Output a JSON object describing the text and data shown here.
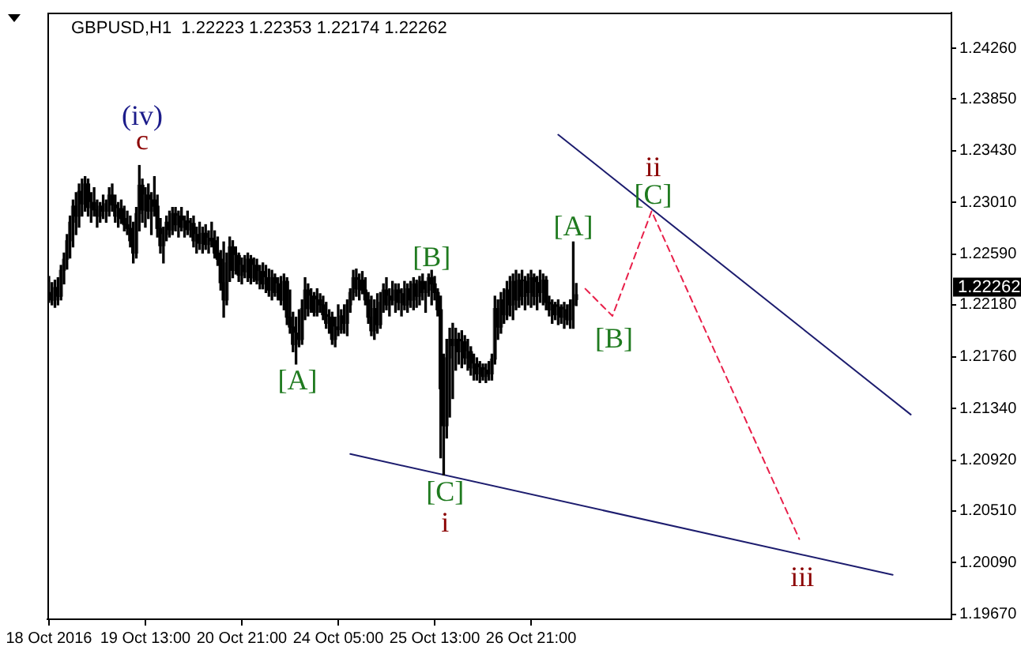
{
  "chart_data": {
    "type": "candlestick",
    "title": "GBPUSD,H1  1.22223 1.22353 1.22174 1.22262",
    "categories": [
      "18 Oct 2016",
      null,
      null,
      null,
      null,
      null,
      null,
      null,
      null,
      null,
      null,
      null,
      null,
      null,
      null,
      null,
      null,
      null,
      null,
      null,
      null,
      null,
      null,
      null,
      null,
      null,
      null,
      null,
      null,
      null,
      null,
      null,
      "19 Oct 13:00",
      null,
      null,
      null,
      null,
      null,
      null,
      null,
      null,
      null,
      null,
      null,
      null,
      null,
      null,
      null,
      null,
      null,
      null,
      null,
      null,
      null,
      null,
      null,
      null,
      null,
      null,
      null,
      null,
      null,
      null,
      null,
      "20 Oct 21:00",
      null,
      null,
      null,
      null,
      null,
      null,
      null,
      null,
      null,
      null,
      null,
      null,
      null,
      null,
      null,
      null,
      null,
      null,
      null,
      null,
      null,
      null,
      null,
      null,
      null,
      null,
      null,
      null,
      null,
      null,
      null,
      "24 Oct 05:00",
      null,
      null,
      null,
      null,
      null,
      null,
      null,
      null,
      null,
      null,
      null,
      null,
      null,
      null,
      null,
      null,
      null,
      null,
      null,
      null,
      null,
      null,
      null,
      null,
      null,
      null,
      null,
      null,
      null,
      null,
      null,
      "25 Oct 13:00",
      null,
      null,
      null,
      null,
      null,
      null,
      null,
      null,
      null,
      null,
      null,
      null,
      null,
      null,
      null,
      null,
      null,
      null,
      null,
      null,
      null,
      null,
      null,
      null,
      null,
      null,
      null,
      null,
      null,
      null,
      null,
      "26 Oct 21:00",
      null,
      null,
      null,
      null,
      null,
      null,
      null,
      null,
      null,
      null,
      null,
      null,
      null,
      null,
      null,
      null,
      null,
      null,
      null,
      null,
      null,
      null,
      null,
      null,
      null,
      null,
      null,
      null,
      null,
      null,
      null,
      null,
      null,
      null,
      null,
      null,
      null,
      null,
      null,
      null,
      null,
      null,
      null,
      null,
      null,
      null,
      null,
      null,
      null,
      null,
      null,
      null,
      null,
      null,
      null,
      null,
      null,
      null,
      null,
      null,
      null,
      null,
      null,
      null,
      null,
      null,
      null,
      null,
      null,
      null,
      null,
      null,
      null,
      null,
      null,
      null,
      null,
      null,
      null,
      null,
      null,
      null,
      null,
      null,
      null,
      null,
      null,
      null,
      null,
      null,
      null,
      null,
      null,
      null,
      null,
      null,
      null,
      null,
      null,
      null,
      null,
      null,
      null,
      null,
      null,
      null,
      null,
      null,
      null,
      null,
      null,
      null,
      null,
      null,
      null,
      null,
      null,
      null,
      null,
      null,
      null,
      null,
      null,
      null,
      null,
      null,
      null,
      null,
      null,
      null,
      null,
      null,
      null,
      null,
      null,
      null,
      null,
      null,
      null
    ],
    "ohlc": [
      [
        1.2228,
        1.2241,
        1.222,
        1.2226
      ],
      [
        1.2226,
        1.2236,
        1.2218,
        1.2222
      ],
      [
        1.2222,
        1.2238,
        1.2216,
        1.2232
      ],
      [
        1.2232,
        1.224,
        1.2218,
        1.2225
      ],
      [
        1.2225,
        1.225,
        1.2222,
        1.2246
      ],
      [
        1.2246,
        1.226,
        1.2235,
        1.2255
      ],
      [
        1.2255,
        1.2275,
        1.2247,
        1.227
      ],
      [
        1.227,
        1.229,
        1.2256,
        1.2285
      ],
      [
        1.2285,
        1.2303,
        1.2265,
        1.2298
      ],
      [
        1.2298,
        1.2309,
        1.2275,
        1.229
      ],
      [
        1.229,
        1.2316,
        1.2281,
        1.231
      ],
      [
        1.231,
        1.232,
        1.229,
        1.23
      ],
      [
        1.23,
        1.2322,
        1.2294,
        1.2316
      ],
      [
        1.2316,
        1.232,
        1.229,
        1.2297
      ],
      [
        1.2297,
        1.2309,
        1.2285,
        1.2301
      ],
      [
        1.2301,
        1.2313,
        1.229,
        1.2295
      ],
      [
        1.2295,
        1.2303,
        1.2281,
        1.229
      ],
      [
        1.229,
        1.2301,
        1.2285,
        1.2298
      ],
      [
        1.2298,
        1.2307,
        1.2288,
        1.2294
      ],
      [
        1.2294,
        1.2303,
        1.2285,
        1.23
      ],
      [
        1.23,
        1.2313,
        1.229,
        1.2307
      ],
      [
        1.2307,
        1.2316,
        1.2294,
        1.2299
      ],
      [
        1.2299,
        1.2307,
        1.2285,
        1.229
      ],
      [
        1.229,
        1.2301,
        1.2281,
        1.2296
      ],
      [
        1.2296,
        1.2303,
        1.2284,
        1.2288
      ],
      [
        1.2288,
        1.2298,
        1.2278,
        1.2283
      ],
      [
        1.2283,
        1.2294,
        1.2275,
        1.228
      ],
      [
        1.228,
        1.229,
        1.2265,
        1.227
      ],
      [
        1.227,
        1.2285,
        1.2252,
        1.226
      ],
      [
        1.226,
        1.2297,
        1.2256,
        1.2292
      ],
      [
        1.2292,
        1.2331,
        1.2278,
        1.2315
      ],
      [
        1.2315,
        1.232,
        1.2285,
        1.2295
      ],
      [
        1.2295,
        1.2313,
        1.2281,
        1.2307
      ],
      [
        1.2307,
        1.2316,
        1.2288,
        1.2294
      ],
      [
        1.2294,
        1.2309,
        1.2275,
        1.2303
      ],
      [
        1.2303,
        1.2322,
        1.229,
        1.2298
      ],
      [
        1.2298,
        1.2307,
        1.2273,
        1.228
      ],
      [
        1.228,
        1.2288,
        1.226,
        1.2266
      ],
      [
        1.2266,
        1.2281,
        1.2252,
        1.2275
      ],
      [
        1.2275,
        1.229,
        1.227,
        1.2285
      ],
      [
        1.2285,
        1.2294,
        1.2273,
        1.2279
      ],
      [
        1.2279,
        1.2297,
        1.2275,
        1.2292
      ],
      [
        1.2292,
        1.2297,
        1.2278,
        1.2283
      ],
      [
        1.2283,
        1.2294,
        1.2273,
        1.229
      ],
      [
        1.229,
        1.2297,
        1.2278,
        1.2281
      ],
      [
        1.2281,
        1.229,
        1.2273,
        1.2286
      ],
      [
        1.2286,
        1.2294,
        1.2275,
        1.2279
      ],
      [
        1.2279,
        1.2288,
        1.2273,
        1.2284
      ],
      [
        1.2284,
        1.229,
        1.2265,
        1.227
      ],
      [
        1.227,
        1.2281,
        1.226,
        1.2275
      ],
      [
        1.2275,
        1.2285,
        1.2263,
        1.2268
      ],
      [
        1.2268,
        1.2281,
        1.226,
        1.2276
      ],
      [
        1.2276,
        1.2283,
        1.2263,
        1.2267
      ],
      [
        1.2267,
        1.2278,
        1.226,
        1.2272
      ],
      [
        1.2272,
        1.2285,
        1.2265,
        1.227
      ],
      [
        1.227,
        1.2278,
        1.2256,
        1.226
      ],
      [
        1.226,
        1.2273,
        1.225,
        1.2255
      ],
      [
        1.2255,
        1.2262,
        1.223,
        1.2236
      ],
      [
        1.2236,
        1.2269,
        1.2208,
        1.2222
      ],
      [
        1.2222,
        1.226,
        1.2218,
        1.2252
      ],
      [
        1.2252,
        1.2273,
        1.2237,
        1.2265
      ],
      [
        1.2265,
        1.227,
        1.224,
        1.2246
      ],
      [
        1.2246,
        1.2265,
        1.2243,
        1.2258
      ],
      [
        1.2258,
        1.226,
        1.2237,
        1.2242
      ],
      [
        1.2242,
        1.2256,
        1.2235,
        1.225
      ],
      [
        1.225,
        1.2258,
        1.224,
        1.2245
      ],
      [
        1.2245,
        1.226,
        1.2237,
        1.2255
      ],
      [
        1.2255,
        1.2258,
        1.2235,
        1.224
      ],
      [
        1.224,
        1.2256,
        1.2237,
        1.225
      ],
      [
        1.225,
        1.2255,
        1.2235,
        1.2238
      ],
      [
        1.2238,
        1.225,
        1.2231,
        1.2245
      ],
      [
        1.2245,
        1.2252,
        1.2231,
        1.2235
      ],
      [
        1.2235,
        1.225,
        1.2228,
        1.224
      ],
      [
        1.224,
        1.2247,
        1.2225,
        1.223
      ],
      [
        1.223,
        1.2246,
        1.2222,
        1.224
      ],
      [
        1.224,
        1.2243,
        1.2225,
        1.2228
      ],
      [
        1.2228,
        1.224,
        1.2222,
        1.2235
      ],
      [
        1.2235,
        1.2241,
        1.2218,
        1.2222
      ],
      [
        1.2222,
        1.2243,
        1.2214,
        1.2237
      ],
      [
        1.2237,
        1.224,
        1.2202,
        1.2208
      ],
      [
        1.2208,
        1.223,
        1.2195,
        1.22
      ],
      [
        1.22,
        1.2212,
        1.218,
        1.2186
      ],
      [
        1.2186,
        1.2208,
        1.217,
        1.2195
      ],
      [
        1.2195,
        1.2214,
        1.2184,
        1.219
      ],
      [
        1.219,
        1.2222,
        1.2186,
        1.2215
      ],
      [
        1.2215,
        1.224,
        1.2206,
        1.223
      ],
      [
        1.223,
        1.2235,
        1.2209,
        1.2215
      ],
      [
        1.2215,
        1.2231,
        1.2212,
        1.2225
      ],
      [
        1.2225,
        1.2228,
        1.2209,
        1.2212
      ],
      [
        1.2212,
        1.2231,
        1.2209,
        1.2222
      ],
      [
        1.2222,
        1.2227,
        1.2212,
        1.2218
      ],
      [
        1.2218,
        1.2225,
        1.2206,
        1.221
      ],
      [
        1.221,
        1.222,
        1.2199,
        1.2203
      ],
      [
        1.2203,
        1.2214,
        1.2195,
        1.2208
      ],
      [
        1.2208,
        1.2212,
        1.2186,
        1.219
      ],
      [
        1.219,
        1.2208,
        1.2184,
        1.22
      ],
      [
        1.22,
        1.2218,
        1.2193,
        1.2198
      ],
      [
        1.2198,
        1.2214,
        1.2195,
        1.2209
      ],
      [
        1.2209,
        1.2218,
        1.2195,
        1.2203
      ],
      [
        1.2203,
        1.2222,
        1.2193,
        1.2218
      ],
      [
        1.2218,
        1.2231,
        1.2212,
        1.2228
      ],
      [
        1.2228,
        1.2246,
        1.2222,
        1.224
      ],
      [
        1.224,
        1.2247,
        1.2225,
        1.2231
      ],
      [
        1.2231,
        1.2243,
        1.2222,
        1.2238
      ],
      [
        1.2238,
        1.2245,
        1.2227,
        1.223
      ],
      [
        1.223,
        1.224,
        1.2218,
        1.2222
      ],
      [
        1.2222,
        1.2228,
        1.2203,
        1.2208
      ],
      [
        1.2208,
        1.2225,
        1.2193,
        1.2197
      ],
      [
        1.2197,
        1.2222,
        1.219,
        1.2215
      ],
      [
        1.2215,
        1.2227,
        1.2195,
        1.2202
      ],
      [
        1.2202,
        1.2228,
        1.2199,
        1.222
      ],
      [
        1.222,
        1.2235,
        1.2212,
        1.223
      ],
      [
        1.223,
        1.224,
        1.2214,
        1.2218
      ],
      [
        1.2218,
        1.2231,
        1.2209,
        1.2225
      ],
      [
        1.2225,
        1.2237,
        1.2218,
        1.2222
      ],
      [
        1.2222,
        1.2235,
        1.2212,
        1.223
      ],
      [
        1.223,
        1.2235,
        1.2214,
        1.222
      ],
      [
        1.222,
        1.2231,
        1.2209,
        1.2227
      ],
      [
        1.2227,
        1.2237,
        1.2214,
        1.2218
      ],
      [
        1.2218,
        1.2235,
        1.2212,
        1.2231
      ],
      [
        1.2231,
        1.2237,
        1.2216,
        1.2222
      ],
      [
        1.2222,
        1.224,
        1.2214,
        1.2235
      ],
      [
        1.2235,
        1.2238,
        1.2216,
        1.2225
      ],
      [
        1.2225,
        1.2241,
        1.2218,
        1.2237
      ],
      [
        1.2237,
        1.2243,
        1.2222,
        1.2228
      ],
      [
        1.2228,
        1.2237,
        1.2212,
        1.223
      ],
      [
        1.223,
        1.2243,
        1.2225,
        1.224
      ],
      [
        1.224,
        1.2246,
        1.2218,
        1.2235
      ],
      [
        1.2235,
        1.2241,
        1.2222,
        1.2228
      ],
      [
        1.2228,
        1.2231,
        1.2209,
        1.2214
      ],
      [
        1.2214,
        1.2225,
        1.2094,
        1.215
      ],
      [
        1.215,
        1.2178,
        1.208,
        1.212
      ],
      [
        1.212,
        1.219,
        1.211,
        1.2175
      ],
      [
        1.2175,
        1.2199,
        1.2127,
        1.219
      ],
      [
        1.219,
        1.2203,
        1.2142,
        1.2185
      ],
      [
        1.2185,
        1.2199,
        1.2165,
        1.219
      ],
      [
        1.219,
        1.2195,
        1.217,
        1.218
      ],
      [
        1.218,
        1.2197,
        1.2167,
        1.2188
      ],
      [
        1.2188,
        1.2193,
        1.217,
        1.2175
      ],
      [
        1.2175,
        1.219,
        1.2165,
        1.218
      ],
      [
        1.218,
        1.2184,
        1.2161,
        1.2167
      ],
      [
        1.2167,
        1.2178,
        1.2157,
        1.217
      ],
      [
        1.217,
        1.2175,
        1.2157,
        1.2162
      ],
      [
        1.2162,
        1.2172,
        1.2155,
        1.2167
      ],
      [
        1.2167,
        1.217,
        1.2157,
        1.216
      ],
      [
        1.216,
        1.217,
        1.2155,
        1.2165
      ],
      [
        1.2165,
        1.2172,
        1.2157,
        1.2162
      ],
      [
        1.2162,
        1.2178,
        1.2157,
        1.2174
      ],
      [
        1.2174,
        1.2225,
        1.217,
        1.2215
      ],
      [
        1.2215,
        1.2222,
        1.219,
        1.22
      ],
      [
        1.22,
        1.2228,
        1.2195,
        1.2222
      ],
      [
        1.2222,
        1.2231,
        1.2203,
        1.221
      ],
      [
        1.221,
        1.2237,
        1.2206,
        1.223
      ],
      [
        1.223,
        1.2241,
        1.2209,
        1.2218
      ],
      [
        1.2218,
        1.2243,
        1.2206,
        1.2237
      ],
      [
        1.2237,
        1.2246,
        1.2214,
        1.2222
      ],
      [
        1.2222,
        1.2243,
        1.2216,
        1.2238
      ],
      [
        1.2238,
        1.2246,
        1.2218,
        1.2225
      ],
      [
        1.2225,
        1.2241,
        1.2214,
        1.2237
      ],
      [
        1.2237,
        1.2243,
        1.2218,
        1.2228
      ],
      [
        1.2228,
        1.2246,
        1.2216,
        1.224
      ],
      [
        1.224,
        1.2243,
        1.2218,
        1.2225
      ],
      [
        1.2225,
        1.2241,
        1.2214,
        1.2236
      ],
      [
        1.2236,
        1.2246,
        1.222,
        1.2228
      ],
      [
        1.2228,
        1.2243,
        1.2218,
        1.2238
      ],
      [
        1.2238,
        1.2241,
        1.2214,
        1.222
      ],
      [
        1.222,
        1.2225,
        1.2209,
        1.2214
      ],
      [
        1.2214,
        1.2222,
        1.2203,
        1.2218
      ],
      [
        1.2218,
        1.222,
        1.2206,
        1.221
      ],
      [
        1.221,
        1.2222,
        1.2202,
        1.2216
      ],
      [
        1.2216,
        1.2218,
        1.2203,
        1.2208
      ],
      [
        1.2208,
        1.222,
        1.2199,
        1.2214
      ],
      [
        1.2214,
        1.2218,
        1.2202,
        1.2206
      ],
      [
        1.2206,
        1.2222,
        1.2199,
        1.2218
      ],
      [
        1.2218,
        1.2269,
        1.2199,
        1.2222
      ],
      [
        1.22223,
        1.22353,
        1.22174,
        1.22262
      ],
      null,
      null,
      null,
      null,
      null,
      null,
      null,
      null,
      null,
      null,
      null,
      null,
      null,
      null,
      null,
      null,
      null,
      null,
      null,
      null,
      null,
      null,
      null,
      null,
      null,
      null,
      null,
      null,
      null,
      null,
      null,
      null,
      null,
      null,
      null,
      null,
      null,
      null,
      null,
      null,
      null,
      null,
      null,
      null,
      null,
      null,
      null,
      null,
      null,
      null,
      null,
      null,
      null,
      null,
      null,
      null,
      null,
      null,
      null,
      null,
      null,
      null,
      null,
      null,
      null,
      null,
      null,
      null,
      null,
      null,
      null,
      null,
      null,
      null,
      null,
      null,
      null,
      null,
      null,
      null,
      null,
      null,
      null,
      null,
      null,
      null,
      null,
      null,
      null,
      null,
      null,
      null,
      null,
      null,
      null,
      null,
      null,
      null,
      null,
      null,
      null,
      null,
      null,
      null,
      null,
      null,
      null,
      null,
      null,
      null,
      null,
      null,
      null,
      null,
      null,
      null,
      null,
      null,
      null,
      null,
      null,
      null,
      null,
      null
    ],
    "series": [
      {
        "type": "line",
        "color": "#1c1c6e",
        "values": [
          null,
          null,
          null,
          null,
          null,
          null,
          null,
          null,
          null,
          null,
          null,
          null,
          null,
          null,
          null,
          null,
          null,
          null,
          null,
          null,
          null,
          null,
          null,
          null,
          null,
          null,
          null,
          null,
          null,
          null,
          null,
          null,
          null,
          null,
          null,
          null,
          null,
          null,
          null,
          null,
          null,
          null,
          null,
          null,
          null,
          null,
          null,
          null,
          null,
          null,
          null,
          null,
          null,
          null,
          null,
          null,
          null,
          null,
          null,
          null,
          null,
          null,
          null,
          null,
          null,
          null,
          null,
          null,
          null,
          null,
          null,
          null,
          null,
          null,
          null,
          null,
          null,
          null,
          null,
          null,
          null,
          null,
          null,
          null,
          null,
          null,
          null,
          null,
          null,
          null,
          null,
          null,
          null,
          null,
          null,
          null,
          null,
          null,
          null,
          null,
          1.2097,
          null,
          null,
          null,
          null,
          null,
          null,
          null,
          null,
          null,
          null,
          null,
          null,
          null,
          null,
          null,
          null,
          null,
          null,
          null,
          null,
          null,
          null,
          null,
          null,
          null,
          null,
          null,
          null,
          null,
          null,
          null,
          null,
          null,
          null,
          null,
          null,
          null,
          null,
          null,
          null,
          null,
          null,
          null,
          null,
          null,
          null,
          null,
          null,
          null,
          null,
          null,
          null,
          null,
          null,
          null,
          null,
          null,
          null,
          null,
          null,
          null,
          null,
          null,
          null,
          null,
          null,
          null,
          null,
          null,
          null,
          null,
          null,
          null,
          null,
          null,
          null,
          null,
          null,
          null,
          null,
          null,
          null,
          null,
          null,
          null,
          null,
          null,
          null,
          null,
          null,
          null,
          null,
          null,
          null,
          null,
          null,
          null,
          null,
          null,
          null,
          null,
          null,
          null,
          null,
          null,
          null,
          null,
          null,
          null,
          null,
          null,
          null,
          null,
          null,
          null,
          null,
          null,
          null,
          null,
          null,
          null,
          null,
          null,
          null,
          null,
          null,
          null,
          null,
          null,
          null,
          null,
          null,
          null,
          null,
          null,
          null,
          null,
          null,
          null,
          null,
          null,
          null,
          null,
          null,
          null,
          null,
          null,
          null,
          null,
          null,
          null,
          null,
          null,
          null,
          null,
          null,
          null,
          null,
          null,
          null,
          null,
          null,
          null,
          null,
          null,
          null,
          null,
          null,
          null,
          null,
          null,
          null,
          null,
          null,
          null,
          null,
          null,
          null,
          null,
          1.1999,
          null,
          null,
          null,
          null,
          null,
          null,
          null,
          null,
          null,
          null,
          null,
          null,
          null,
          null,
          null,
          null,
          null,
          null,
          null
        ]
      },
      {
        "type": "line",
        "color": "#1c1c6e",
        "values": [
          null,
          null,
          null,
          null,
          null,
          null,
          null,
          null,
          null,
          null,
          null,
          null,
          null,
          null,
          null,
          null,
          null,
          null,
          null,
          null,
          null,
          null,
          null,
          null,
          null,
          null,
          null,
          null,
          null,
          null,
          null,
          null,
          null,
          null,
          null,
          null,
          null,
          null,
          null,
          null,
          null,
          null,
          null,
          null,
          null,
          null,
          null,
          null,
          null,
          null,
          null,
          null,
          null,
          null,
          null,
          null,
          null,
          null,
          null,
          null,
          null,
          null,
          null,
          null,
          null,
          null,
          null,
          null,
          null,
          null,
          null,
          null,
          null,
          null,
          null,
          null,
          null,
          null,
          null,
          null,
          null,
          null,
          null,
          null,
          null,
          null,
          null,
          null,
          null,
          null,
          null,
          null,
          null,
          null,
          null,
          null,
          null,
          null,
          null,
          null,
          null,
          null,
          null,
          null,
          null,
          null,
          null,
          null,
          null,
          null,
          null,
          null,
          null,
          null,
          null,
          null,
          null,
          null,
          null,
          null,
          null,
          null,
          null,
          null,
          null,
          null,
          null,
          null,
          null,
          null,
          null,
          null,
          null,
          null,
          null,
          null,
          null,
          null,
          null,
          null,
          null,
          null,
          null,
          null,
          null,
          null,
          null,
          null,
          null,
          null,
          null,
          null,
          null,
          null,
          null,
          null,
          null,
          null,
          null,
          null,
          null,
          null,
          null,
          null,
          null,
          null,
          null,
          null,
          null,
          1.2356,
          null,
          null,
          null,
          null,
          null,
          null,
          null,
          null,
          null,
          null,
          null,
          null,
          null,
          null,
          null,
          null,
          null,
          null,
          null,
          null,
          null,
          null,
          null,
          null,
          null,
          null,
          null,
          null,
          null,
          null,
          null,
          null,
          null,
          null,
          null,
          null,
          null,
          null,
          null,
          null,
          null,
          null,
          null,
          null,
          null,
          null,
          null,
          null,
          null,
          null,
          null,
          null,
          null,
          null,
          null,
          null,
          null,
          null,
          null,
          null,
          null,
          null,
          null,
          null,
          null,
          null,
          null,
          null,
          null,
          null,
          null,
          null,
          null,
          null,
          null,
          null,
          null,
          null,
          null,
          null,
          null,
          null,
          null,
          null,
          null,
          null,
          null,
          null,
          null,
          null,
          null,
          null,
          null,
          null,
          null,
          null,
          null,
          null,
          null,
          null,
          null,
          null,
          null,
          null,
          null,
          null,
          null,
          null,
          null,
          null,
          null,
          null,
          null,
          null,
          null,
          null,
          1.2129,
          null,
          null,
          null,
          null,
          null,
          null,
          null,
          null,
          null,
          null,
          null,
          null,
          null
        ]
      },
      {
        "type": "line",
        "color": "#e8204a",
        "line_style": "dashed",
        "values": [
          null,
          null,
          null,
          null,
          null,
          null,
          null,
          null,
          null,
          null,
          null,
          null,
          null,
          null,
          null,
          null,
          null,
          null,
          null,
          null,
          null,
          null,
          null,
          null,
          null,
          null,
          null,
          null,
          null,
          null,
          null,
          null,
          null,
          null,
          null,
          null,
          null,
          null,
          null,
          null,
          null,
          null,
          null,
          null,
          null,
          null,
          null,
          null,
          null,
          null,
          null,
          null,
          null,
          null,
          null,
          null,
          null,
          null,
          null,
          null,
          null,
          null,
          null,
          null,
          null,
          null,
          null,
          null,
          null,
          null,
          null,
          null,
          null,
          null,
          null,
          null,
          null,
          null,
          null,
          null,
          null,
          null,
          null,
          null,
          null,
          null,
          null,
          null,
          null,
          null,
          null,
          null,
          null,
          null,
          null,
          null,
          null,
          null,
          null,
          null,
          null,
          null,
          null,
          null,
          null,
          null,
          null,
          null,
          null,
          null,
          null,
          null,
          null,
          null,
          null,
          null,
          null,
          null,
          null,
          null,
          null,
          null,
          null,
          null,
          null,
          null,
          null,
          null,
          null,
          null,
          null,
          null,
          null,
          null,
          null,
          null,
          null,
          null,
          null,
          null,
          null,
          null,
          null,
          null,
          null,
          null,
          null,
          null,
          null,
          null,
          null,
          null,
          null,
          null,
          null,
          null,
          null,
          null,
          null,
          null,
          null,
          null,
          null,
          null,
          null,
          null,
          null,
          null,
          null,
          null,
          null,
          null,
          null,
          null,
          null,
          null,
          null,
          null,
          1.2231,
          null,
          null,
          null,
          null,
          null,
          null,
          null,
          null,
          1.2209,
          null,
          null,
          null,
          null,
          null,
          null,
          null,
          null,
          null,
          null,
          null,
          null,
          1.2294,
          null,
          null,
          null,
          null,
          null,
          null,
          null,
          null,
          null,
          null,
          null,
          null,
          null,
          null,
          null,
          null,
          null,
          null,
          null,
          null,
          null,
          null,
          null,
          null,
          null,
          null,
          null,
          null,
          null,
          null,
          null,
          null,
          null,
          null,
          null,
          null,
          null,
          null,
          null,
          null,
          null,
          null,
          null,
          null,
          null,
          null,
          null,
          null,
          1.2028,
          null,
          null,
          null,
          null,
          null,
          null,
          null,
          null,
          null,
          null,
          null,
          null,
          null,
          null,
          null,
          null,
          null,
          null,
          null,
          null,
          null,
          null,
          null,
          null,
          null,
          null,
          null,
          null,
          null,
          null,
          null,
          null,
          null,
          null,
          null,
          null,
          null,
          null,
          null,
          null,
          null,
          null,
          null,
          null,
          null,
          null,
          null,
          null,
          null,
          null
        ]
      }
    ],
    "ylim": [
      1.1963,
      1.2455
    ],
    "yticks": [
      {
        "value": 1.1967,
        "label": "1.19670"
      },
      {
        "value": 1.2009,
        "label": "1.20090"
      },
      {
        "value": 1.2051,
        "label": "1.20510"
      },
      {
        "value": 1.2092,
        "label": "1.20920"
      },
      {
        "value": 1.2134,
        "label": "1.21340"
      },
      {
        "value": 1.2176,
        "label": "1.21760"
      },
      {
        "value": 1.2218,
        "label": "1.22180"
      },
      {
        "value": 1.2259,
        "label": "1.22590"
      },
      {
        "value": 1.2301,
        "label": "1.23010"
      },
      {
        "value": 1.2343,
        "label": "1.23430"
      },
      {
        "value": 1.2385,
        "label": "1.23850"
      },
      {
        "value": 1.2426,
        "label": "1.24260"
      }
    ],
    "annotations": [
      "(iv)",
      "c",
      "[A]",
      "[B]",
      "[C]",
      "i",
      "[A]",
      "[B]",
      "ii",
      "[C]",
      "iii",
      "1.22262"
    ],
    "grid": false,
    "legend": false,
    "marker": "none"
  }
}
